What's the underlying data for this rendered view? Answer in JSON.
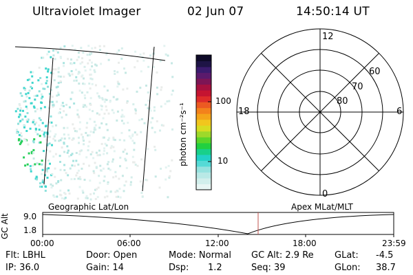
{
  "header": {
    "title": "Ultraviolet Imager",
    "date": "02 Jun 07",
    "time": "14:50:14 UT"
  },
  "colorbar": {
    "unit_label": "photon cm⁻²s⁻¹",
    "ticks": [
      "100",
      "10"
    ],
    "colors": [
      "#e8f6f4",
      "#d2efec",
      "#b9e9e6",
      "#96e2df",
      "#55dad6",
      "#22d1c7",
      "#18d08a",
      "#22d040",
      "#5bd52a",
      "#9ed92a",
      "#d7dd22",
      "#f1c61d",
      "#f4a51a",
      "#f3821c",
      "#ec5a22",
      "#de2c2a",
      "#c51431",
      "#a7113f",
      "#7d1555",
      "#5b1a6c",
      "#3b1b6e",
      "#1e1446",
      "#0e0a28"
    ]
  },
  "polar_plot": {
    "labels": {
      "mlt_12": "12",
      "mlt_18": "18",
      "mlt_6": "6",
      "mlt_0": "0",
      "lat_60": "60",
      "lat_70": "70",
      "lat_80": "80"
    }
  },
  "timeline": {
    "geo_label": "Geographic Lat/Lon",
    "apex_label": "Apex MLat/MLT",
    "axis_label": "GC Alt",
    "y_ticks": [
      "9.0",
      "1.8"
    ],
    "x_ticks": [
      "00:00",
      "06:00",
      "12:00",
      "18:00",
      "23:59"
    ],
    "marker_color": "#c0504d"
  },
  "info": {
    "flt": "Flt: LBHL",
    "ip": "IP: 36.0",
    "door": "Door: Open",
    "gain": "Gain: 14",
    "mode": "Mode: Normal",
    "dsp_label": "Dsp:",
    "dsp_value": "1.2",
    "gcalt": "GC Alt: 2.9 Re",
    "seq": "Seq: 39",
    "glat_label": "GLat:",
    "glat_value": "-4.5",
    "glon_label": "GLon:",
    "glon_value": "38.7"
  }
}
